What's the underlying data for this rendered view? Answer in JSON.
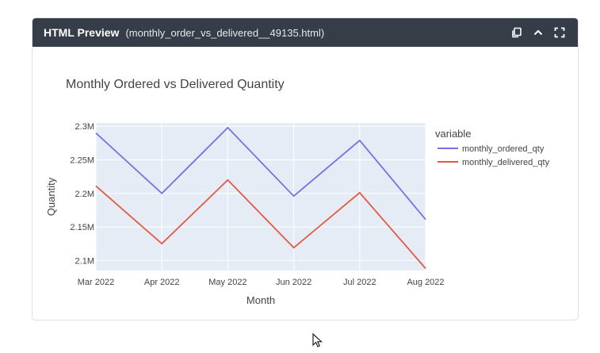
{
  "header": {
    "title": "HTML Preview",
    "filename": "(monthly_order_vs_delivered__49135.html)",
    "icons": [
      "copy-icon",
      "chevron-up-icon",
      "expand-icon"
    ]
  },
  "colors": {
    "header_bg": "#363d48",
    "plot_bg": "#e5ecf6",
    "ordered": "#7b6fe0",
    "delivered": "#e25a44"
  },
  "chart_data": {
    "type": "line",
    "title": "Monthly Ordered vs Delivered Quantity",
    "xlabel": "Month",
    "ylabel": "Quantity",
    "legend_title": "variable",
    "legend_position": "right",
    "grid": true,
    "x": [
      "Mar 2022",
      "Apr 2022",
      "May 2022",
      "Jun 2022",
      "Jul 2022",
      "Aug 2022"
    ],
    "ylim": [
      2085000,
      2305000
    ],
    "yticks": [
      2100000,
      2150000,
      2200000,
      2250000,
      2300000
    ],
    "ytick_labels": [
      "2.1M",
      "2.15M",
      "2.2M",
      "2.25M",
      "2.3M"
    ],
    "series": [
      {
        "name": "monthly_ordered_qty",
        "color": "#7b6fe0",
        "values": [
          2290000,
          2200000,
          2298000,
          2196000,
          2279000,
          2161000
        ]
      },
      {
        "name": "monthly_delivered_qty",
        "color": "#e25a44",
        "values": [
          2211000,
          2125000,
          2220000,
          2119000,
          2201000,
          2088000
        ]
      }
    ]
  }
}
